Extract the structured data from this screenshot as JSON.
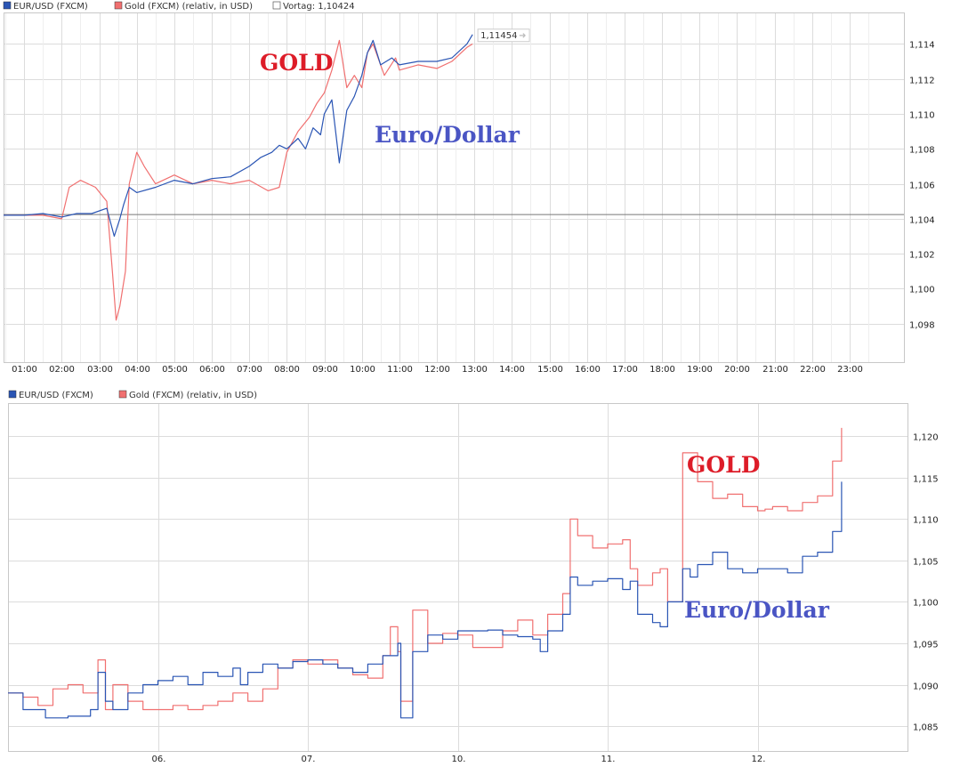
{
  "colors": {
    "eurusd": "#2a55b4",
    "gold": "#f07070",
    "vortag": "#777777",
    "annot_gold": "#dd1c28",
    "annot_euro": "#4a55c4"
  },
  "chart_data": [
    {
      "type": "line",
      "legend": [
        {
          "label": "EUR/USD (FXCM)",
          "color": "#2a55b4"
        },
        {
          "label": "Gold (FXCM) (relativ, in USD)",
          "color": "#f07070"
        },
        {
          "label": "Vortag: 1,10424",
          "color": "#ffffff"
        }
      ],
      "x_ticks": [
        "01:00",
        "02:00",
        "03:00",
        "04:00",
        "05:00",
        "06:00",
        "07:00",
        "08:00",
        "09:00",
        "10:00",
        "11:00",
        "12:00",
        "13:00",
        "14:00",
        "15:00",
        "16:00",
        "17:00",
        "18:00",
        "19:00",
        "20:00",
        "21:00",
        "22:00",
        "23:00"
      ],
      "x_range_hours": [
        0.45,
        24.45
      ],
      "ylim": [
        1.0958,
        1.1158
      ],
      "y_ticks": [
        "1,098",
        "1,100",
        "1,102",
        "1,104",
        "1,106",
        "1,108",
        "1,110",
        "1,112",
        "1,114"
      ],
      "y_tick_values": [
        1.098,
        1.1,
        1.102,
        1.104,
        1.106,
        1.108,
        1.11,
        1.112,
        1.114
      ],
      "reference_line": 1.10424,
      "last_value_label": "1,11454",
      "last_value": 1.11454,
      "annotations": {
        "gold": "GOLD",
        "euro": "Euro/Dollar"
      },
      "series": [
        {
          "name": "EUR/USD (FXCM)",
          "color": "#2a55b4",
          "x": [
            0.45,
            1.0,
            1.5,
            2.0,
            2.4,
            2.8,
            3.2,
            3.3,
            3.4,
            3.55,
            3.65,
            3.8,
            4.0,
            4.5,
            5.0,
            5.5,
            6.0,
            6.5,
            7.0,
            7.3,
            7.6,
            7.8,
            8.0,
            8.3,
            8.5,
            8.7,
            8.9,
            9.0,
            9.2,
            9.4,
            9.6,
            9.8,
            10.0,
            10.15,
            10.3,
            10.5,
            10.8,
            11.0,
            11.5,
            12.0,
            12.4,
            12.8,
            12.95
          ],
          "y": [
            1.1042,
            1.1042,
            1.1043,
            1.1041,
            1.1043,
            1.1043,
            1.1046,
            1.1038,
            1.103,
            1.104,
            1.1048,
            1.1058,
            1.1055,
            1.1058,
            1.1062,
            1.106,
            1.1063,
            1.1064,
            1.107,
            1.1075,
            1.1078,
            1.1082,
            1.108,
            1.1086,
            1.108,
            1.1092,
            1.1088,
            1.11,
            1.1108,
            1.1072,
            1.1102,
            1.111,
            1.1122,
            1.1135,
            1.1142,
            1.1128,
            1.1132,
            1.1128,
            1.113,
            1.113,
            1.1132,
            1.114,
            1.11454
          ]
        },
        {
          "name": "Gold (FXCM) (relativ, in USD)",
          "color": "#f07070",
          "x": [
            0.45,
            1.0,
            1.5,
            2.0,
            2.2,
            2.5,
            2.9,
            3.2,
            3.35,
            3.45,
            3.55,
            3.7,
            3.8,
            4.0,
            4.2,
            4.5,
            5.0,
            5.5,
            6.0,
            6.5,
            7.0,
            7.5,
            7.8,
            8.0,
            8.3,
            8.6,
            8.8,
            9.0,
            9.2,
            9.4,
            9.6,
            9.8,
            10.0,
            10.15,
            10.3,
            10.6,
            10.9,
            11.0,
            11.5,
            12.0,
            12.4,
            12.8,
            12.95
          ],
          "y": [
            1.1042,
            1.1042,
            1.1042,
            1.104,
            1.1058,
            1.1062,
            1.1058,
            1.105,
            1.101,
            1.0982,
            1.099,
            1.101,
            1.106,
            1.1078,
            1.107,
            1.106,
            1.1065,
            1.106,
            1.1062,
            1.106,
            1.1062,
            1.1056,
            1.1058,
            1.1078,
            1.109,
            1.1098,
            1.1106,
            1.1112,
            1.1125,
            1.1142,
            1.1115,
            1.1122,
            1.1115,
            1.1135,
            1.114,
            1.1122,
            1.1132,
            1.1125,
            1.1128,
            1.1126,
            1.113,
            1.1138,
            1.114
          ]
        }
      ]
    },
    {
      "type": "line",
      "legend": [
        {
          "label": "EUR/USD (FXCM)",
          "color": "#2a55b4"
        },
        {
          "label": "Gold (FXCM) (relativ, in USD)",
          "color": "#f07070"
        }
      ],
      "x_ticks": [
        "06.",
        "07.",
        "10.",
        "11.",
        "12."
      ],
      "x_tick_positions_days": [
        1,
        2,
        3,
        4,
        5
      ],
      "x_range_days": [
        0,
        6
      ],
      "ylim": [
        1.082,
        1.124
      ],
      "y_ticks": [
        "1,085",
        "1,090",
        "1,095",
        "1,100",
        "1,105",
        "1,110",
        "1,115",
        "1,120"
      ],
      "y_tick_values": [
        1.085,
        1.09,
        1.095,
        1.1,
        1.105,
        1.11,
        1.115,
        1.12
      ],
      "annotations": {
        "gold": "GOLD",
        "euro": "Euro/Dollar"
      },
      "series": [
        {
          "name": "EUR/USD (FXCM)",
          "color": "#2a55b4",
          "x": [
            0.0,
            0.1,
            0.25,
            0.4,
            0.55,
            0.6,
            0.65,
            0.7,
            0.8,
            0.9,
            1.0,
            1.1,
            1.2,
            1.3,
            1.4,
            1.5,
            1.55,
            1.6,
            1.7,
            1.8,
            1.9,
            2.0,
            2.1,
            2.2,
            2.3,
            2.4,
            2.5,
            2.6,
            2.62,
            2.7,
            2.8,
            2.9,
            3.0,
            3.1,
            3.2,
            3.3,
            3.4,
            3.5,
            3.55,
            3.6,
            3.7,
            3.75,
            3.8,
            3.9,
            4.0,
            4.1,
            4.15,
            4.2,
            4.3,
            4.35,
            4.4,
            4.5,
            4.55,
            4.6,
            4.7,
            4.8,
            4.9,
            5.0,
            5.1,
            5.2,
            5.3,
            5.4,
            5.5,
            5.56
          ],
          "y": [
            1.089,
            1.087,
            1.086,
            1.0862,
            1.087,
            1.0915,
            1.088,
            1.087,
            1.089,
            1.09,
            1.0905,
            1.091,
            1.09,
            1.0915,
            1.091,
            1.092,
            1.09,
            1.0915,
            1.0925,
            1.092,
            1.0928,
            1.093,
            1.0925,
            1.092,
            1.0915,
            1.0925,
            1.0935,
            1.095,
            1.086,
            1.094,
            1.096,
            1.0955,
            1.0965,
            1.0965,
            1.0966,
            1.096,
            1.0958,
            1.0955,
            1.094,
            1.0965,
            1.0985,
            1.103,
            1.102,
            1.1025,
            1.1028,
            1.1015,
            1.1025,
            1.0985,
            1.0975,
            1.097,
            1.1,
            1.104,
            1.103,
            1.1045,
            1.106,
            1.104,
            1.1035,
            1.104,
            1.104,
            1.1035,
            1.1055,
            1.106,
            1.1085,
            1.1145
          ]
        },
        {
          "name": "Gold (FXCM) (relativ, in USD)",
          "color": "#f07070",
          "x": [
            0.0,
            0.1,
            0.2,
            0.3,
            0.4,
            0.5,
            0.6,
            0.65,
            0.7,
            0.8,
            0.9,
            1.0,
            1.1,
            1.2,
            1.3,
            1.4,
            1.5,
            1.6,
            1.7,
            1.8,
            1.9,
            2.0,
            2.1,
            2.2,
            2.3,
            2.4,
            2.5,
            2.55,
            2.6,
            2.62,
            2.7,
            2.8,
            2.9,
            3.0,
            3.1,
            3.2,
            3.3,
            3.4,
            3.5,
            3.6,
            3.7,
            3.75,
            3.8,
            3.9,
            4.0,
            4.1,
            4.15,
            4.2,
            4.3,
            4.35,
            4.4,
            4.5,
            4.6,
            4.7,
            4.8,
            4.9,
            5.0,
            5.05,
            5.1,
            5.2,
            5.3,
            5.4,
            5.5,
            5.56
          ],
          "y": [
            1.089,
            1.0885,
            1.0875,
            1.0895,
            1.09,
            1.089,
            1.093,
            1.087,
            1.09,
            1.088,
            1.087,
            1.087,
            1.0875,
            1.087,
            1.0875,
            1.088,
            1.089,
            1.088,
            1.0895,
            1.092,
            1.093,
            1.0925,
            1.093,
            1.092,
            1.0912,
            1.0908,
            1.0935,
            1.097,
            1.094,
            1.088,
            1.099,
            1.095,
            1.0962,
            1.096,
            1.0945,
            1.0945,
            1.0965,
            1.0978,
            1.096,
            1.0985,
            1.101,
            1.11,
            1.108,
            1.1065,
            1.107,
            1.1075,
            1.104,
            1.102,
            1.1035,
            1.104,
            1.1,
            1.118,
            1.1145,
            1.1125,
            1.113,
            1.1115,
            1.111,
            1.1112,
            1.1115,
            1.111,
            1.112,
            1.1128,
            1.117,
            1.121
          ]
        }
      ]
    }
  ]
}
